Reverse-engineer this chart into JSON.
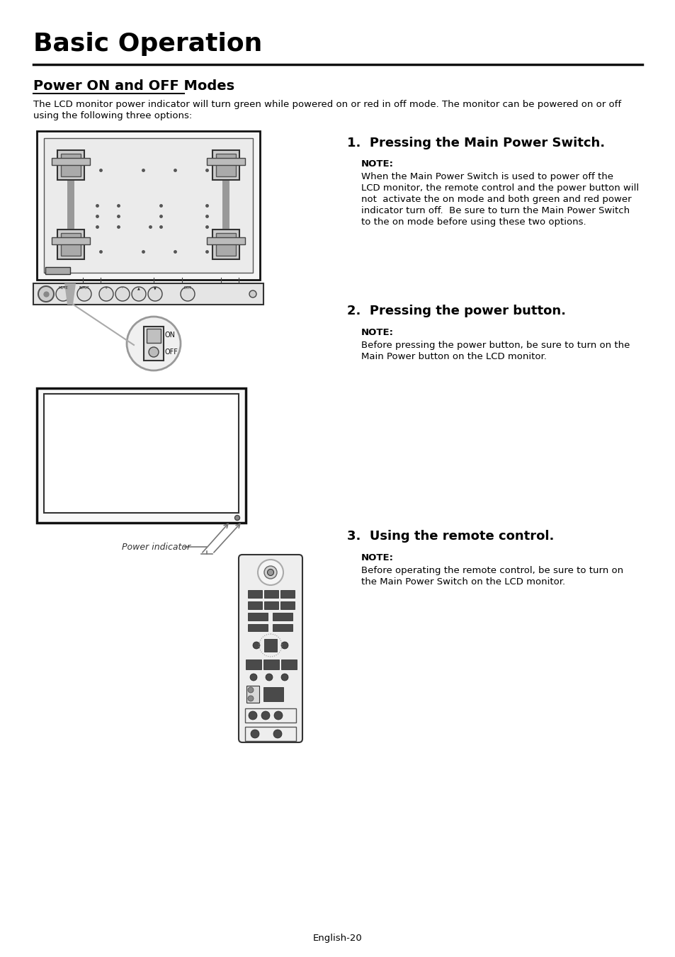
{
  "title": "Basic Operation",
  "section_title": "Power ON and OFF Modes",
  "section_desc1": "The LCD monitor power indicator will turn green while powered on or red in off mode. The monitor can be powered on or off",
  "section_desc2": "using the following three options:",
  "item1_title": "1.  Pressing the Main Power Switch.",
  "item1_note": "NOTE:",
  "item1_text_lines": [
    "When the Main Power Switch is used to power off the",
    "LCD monitor, the remote control and the power button will",
    "not  activate the on mode and both green and red power",
    "indicator turn off.  Be sure to turn the Main Power Switch",
    "to the on mode before using these two options."
  ],
  "item2_title": "2.  Pressing the power button.",
  "item2_note": "NOTE:",
  "item2_text_lines": [
    "Before pressing the power button, be sure to turn on the",
    "Main Power button on the LCD monitor."
  ],
  "item3_title": "3.  Using the remote control.",
  "item3_note": "NOTE:",
  "item3_text_lines": [
    "Before operating the remote control, be sure to turn on",
    "the Main Power Switch on the LCD monitor."
  ],
  "footer": "English-20",
  "bg_color": "#ffffff"
}
